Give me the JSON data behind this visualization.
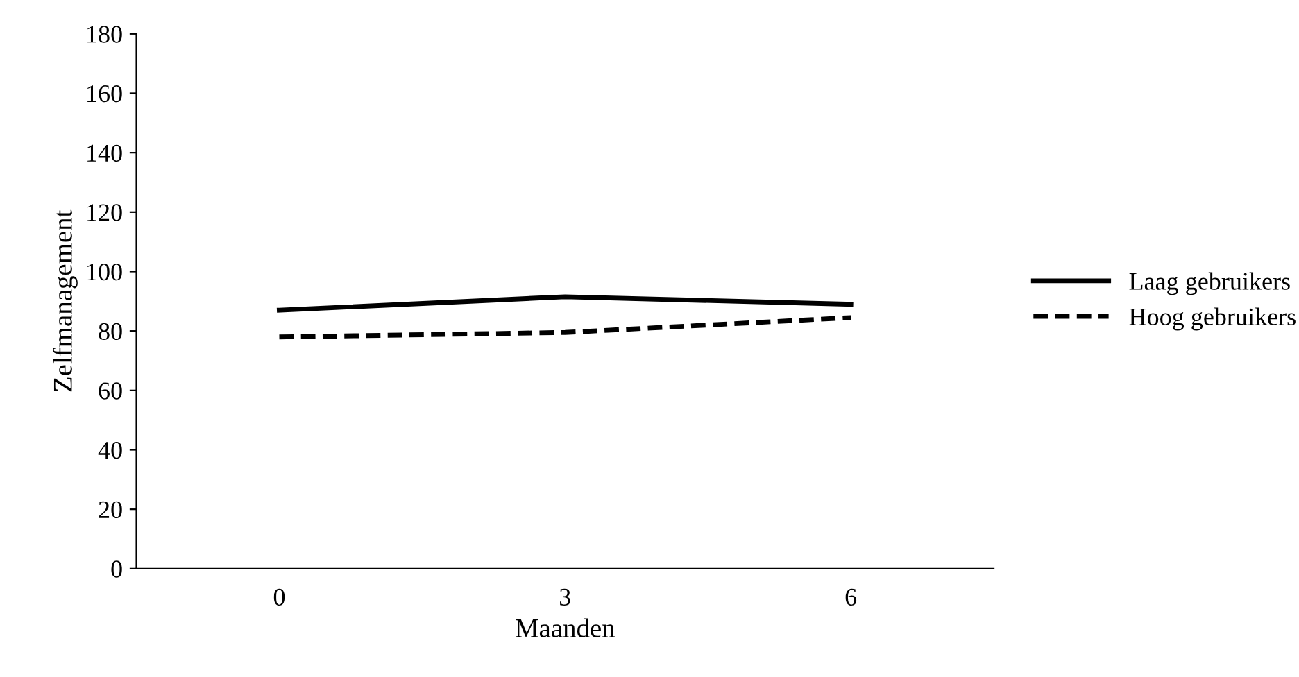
{
  "chart_data": {
    "type": "line",
    "xlabel": "Maanden",
    "ylabel": "Zelfmanagement",
    "categories": [
      "0",
      "3",
      "6"
    ],
    "series": [
      {
        "name": "Laag gebruikers",
        "color": "#000000",
        "line_style": "solid",
        "values": [
          87,
          91.5,
          89
        ]
      },
      {
        "name": "Hoog gebruikers",
        "color": "#000000",
        "line_style": "dashed",
        "values": [
          78,
          79.5,
          84.5
        ]
      }
    ],
    "ylim": [
      0,
      180
    ],
    "yticks": [
      0,
      20,
      40,
      60,
      80,
      100,
      120,
      140,
      160,
      180
    ],
    "grid": false,
    "legend": "right",
    "marker": "none"
  }
}
